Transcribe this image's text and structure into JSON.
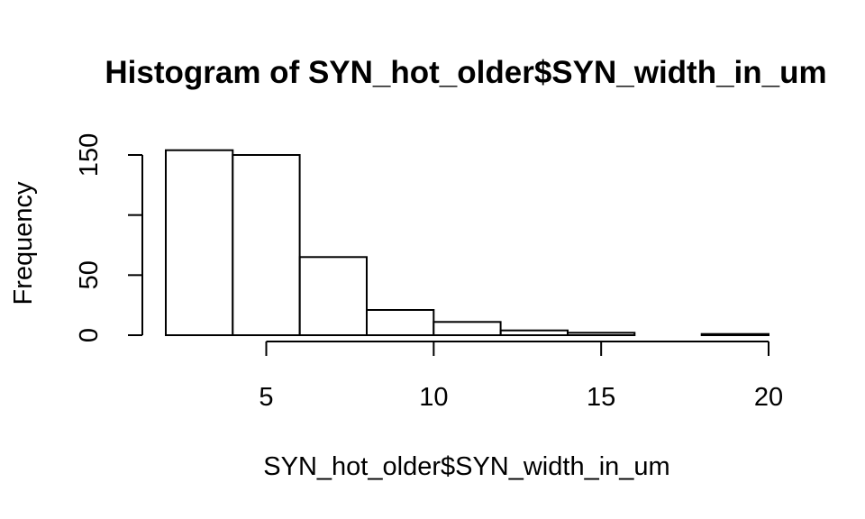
{
  "chart_data": {
    "type": "bar",
    "title": "Histogram of SYN_hot_older$SYN_width_in_um",
    "xlabel": "SYN_hot_older$SYN_width_in_um",
    "ylabel": "Frequency",
    "bins": [
      {
        "start": 2,
        "end": 4,
        "count": 154
      },
      {
        "start": 4,
        "end": 6,
        "count": 150
      },
      {
        "start": 6,
        "end": 8,
        "count": 65
      },
      {
        "start": 8,
        "end": 10,
        "count": 21
      },
      {
        "start": 10,
        "end": 12,
        "count": 11
      },
      {
        "start": 12,
        "end": 14,
        "count": 4
      },
      {
        "start": 14,
        "end": 16,
        "count": 2
      },
      {
        "start": 16,
        "end": 18,
        "count": 0
      },
      {
        "start": 18,
        "end": 20,
        "count": 1
      }
    ],
    "xlim": [
      2,
      20
    ],
    "ylim": [
      0,
      160
    ],
    "x_ticks": [
      5,
      10,
      15,
      20
    ],
    "x_tick_labels": [
      "5",
      "10",
      "15",
      "20"
    ],
    "x_axis_range": [
      5,
      20
    ],
    "y_ticks": [
      0,
      50,
      100,
      150
    ],
    "y_tick_labels": [
      "0",
      "50",
      "",
      "150"
    ],
    "y_axis_range": [
      0,
      150
    ],
    "grid": false,
    "legend": "none"
  }
}
